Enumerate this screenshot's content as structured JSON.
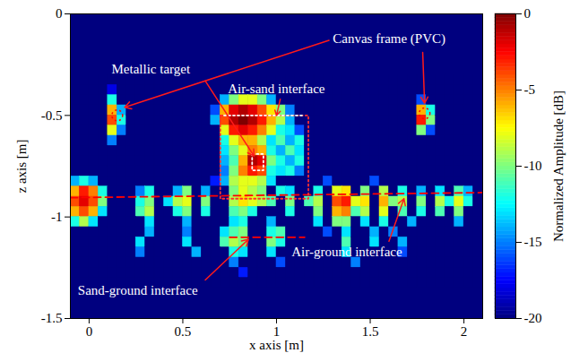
{
  "chart_data": {
    "type": "heatmap",
    "xlabel": "x axis [m]",
    "ylabel": "z axis [m]",
    "xlim": [
      -0.1,
      2.1
    ],
    "ylim": [
      -1.5,
      0
    ],
    "xticks": [
      0,
      0.5,
      1,
      1.5,
      2
    ],
    "yticks": [
      -1.5,
      -1,
      -0.5,
      0
    ],
    "colorbar": {
      "label": "Normalized Amplitude [dB]",
      "range": [
        -20,
        0
      ],
      "ticks": [
        -20,
        -15,
        -10,
        -5,
        0
      ]
    },
    "heatmap": {
      "x": [
        -0.075,
        -0.025,
        0.025,
        0.075,
        0.125,
        0.175,
        0.225,
        0.275,
        0.325,
        0.375,
        0.425,
        0.475,
        0.525,
        0.575,
        0.625,
        0.675,
        0.725,
        0.775,
        0.825,
        0.875,
        0.925,
        0.975,
        1.025,
        1.075,
        1.125,
        1.175,
        1.225,
        1.275,
        1.325,
        1.375,
        1.425,
        1.475,
        1.525,
        1.575,
        1.625,
        1.675,
        1.725,
        1.775,
        1.825,
        1.875,
        1.925,
        1.975,
        2.025,
        2.075
      ],
      "z": [
        -0.325,
        -0.375,
        -0.425,
        -0.475,
        -0.525,
        -0.575,
        -0.625,
        -0.675,
        -0.725,
        -0.775,
        -0.825,
        -0.875,
        -0.925,
        -0.975,
        -1.025,
        -1.075,
        -1.125,
        -1.175,
        -1.225,
        -1.275,
        -1.325
      ],
      "values": [
        [
          -20,
          -20,
          -20,
          -20,
          -20,
          -20,
          -20,
          -20,
          -20,
          -20,
          -20,
          -20,
          -20,
          -20,
          -20,
          -20,
          -20,
          -20,
          -20,
          -20,
          -20,
          -20,
          -20,
          -20,
          -20,
          -20,
          -20,
          -20,
          -20,
          -20,
          -20,
          -20,
          -20,
          -20,
          -20,
          -20,
          -20,
          -20,
          -20,
          -20,
          -20,
          -20,
          -20,
          -20
        ],
        [
          -20,
          -20,
          -20,
          -20,
          -18,
          -20,
          -20,
          -20,
          -20,
          -20,
          -20,
          -20,
          -20,
          -20,
          -20,
          -20,
          -20,
          -20,
          -20,
          -20,
          -20,
          -20,
          -20,
          -20,
          -20,
          -20,
          -20,
          -20,
          -20,
          -20,
          -20,
          -20,
          -20,
          -20,
          -20,
          -20,
          -20,
          -20,
          -20,
          -20,
          -20,
          -20,
          -20,
          -20
        ],
        [
          -20,
          -20,
          -20,
          -20,
          -12,
          -20,
          -20,
          -20,
          -20,
          -20,
          -20,
          -20,
          -20,
          -20,
          -20,
          -20,
          -14,
          -10,
          -8,
          -8,
          -10,
          -14,
          -20,
          -20,
          -20,
          -20,
          -20,
          -20,
          -20,
          -20,
          -20,
          -20,
          -20,
          -20,
          -20,
          -20,
          -20,
          -16,
          -20,
          -20,
          -20,
          -20,
          -20,
          -20
        ],
        [
          -20,
          -20,
          -20,
          -20,
          -6,
          -14,
          -20,
          -20,
          -20,
          -20,
          -20,
          -20,
          -20,
          -20,
          -20,
          -16,
          -6,
          -2,
          -1,
          -2,
          -4,
          -7,
          -10,
          -15,
          -20,
          -20,
          -20,
          -20,
          -20,
          -20,
          -20,
          -20,
          -20,
          -20,
          -20,
          -20,
          -20,
          -6,
          -12,
          -20,
          -20,
          -20,
          -20,
          -20
        ],
        [
          -20,
          -20,
          -20,
          -20,
          -4,
          -12,
          -20,
          -20,
          -20,
          -20,
          -20,
          -20,
          -20,
          -20,
          -20,
          -14,
          -4,
          -1,
          0,
          -1,
          -3,
          -6,
          -9,
          -14,
          -20,
          -20,
          -20,
          -20,
          -20,
          -20,
          -20,
          -20,
          -20,
          -20,
          -20,
          -20,
          -20,
          -3,
          -10,
          -20,
          -20,
          -20,
          -20,
          -20
        ],
        [
          -20,
          -20,
          -20,
          -20,
          -8,
          -15,
          -20,
          -20,
          -20,
          -20,
          -20,
          -20,
          -20,
          -20,
          -20,
          -20,
          -8,
          -3,
          -2,
          -3,
          -5,
          -8,
          -12,
          -13,
          -16,
          -20,
          -20,
          -20,
          -20,
          -20,
          -20,
          -20,
          -20,
          -20,
          -20,
          -20,
          -20,
          -10,
          -16,
          -20,
          -20,
          -20,
          -20,
          -20
        ],
        [
          -20,
          -20,
          -20,
          -20,
          -15,
          -20,
          -20,
          -20,
          -20,
          -20,
          -20,
          -20,
          -20,
          -20,
          -20,
          -20,
          -12,
          -8,
          -6,
          -6,
          -9,
          -13,
          -11,
          -14,
          -12,
          -20,
          -20,
          -20,
          -20,
          -20,
          -20,
          -20,
          -20,
          -20,
          -20,
          -20,
          -20,
          -20,
          -20,
          -20,
          -20,
          -20,
          -20,
          -20
        ],
        [
          -20,
          -20,
          -20,
          -20,
          -20,
          -20,
          -20,
          -20,
          -20,
          -20,
          -20,
          -20,
          -20,
          -20,
          -20,
          -20,
          -13,
          -10,
          -8,
          -5,
          -6,
          -12,
          -14,
          -11,
          -13,
          -20,
          -20,
          -20,
          -20,
          -20,
          -20,
          -20,
          -20,
          -20,
          -20,
          -20,
          -20,
          -20,
          -20,
          -20,
          -20,
          -20,
          -20,
          -20
        ],
        [
          -20,
          -20,
          -20,
          -20,
          -20,
          -20,
          -20,
          -20,
          -20,
          -20,
          -20,
          -20,
          -20,
          -20,
          -20,
          -20,
          -14,
          -11,
          -6,
          -1,
          -2,
          -10,
          -12,
          -14,
          -12,
          -20,
          -20,
          -20,
          -20,
          -20,
          -20,
          -20,
          -20,
          -20,
          -20,
          -20,
          -20,
          -20,
          -20,
          -20,
          -20,
          -20,
          -20,
          -20
        ],
        [
          -20,
          -20,
          -20,
          -20,
          -20,
          -20,
          -20,
          -20,
          -20,
          -20,
          -20,
          -20,
          -20,
          -20,
          -20,
          -20,
          -15,
          -10,
          -5,
          -3,
          -4,
          -12,
          -13,
          -12,
          -15,
          -20,
          -20,
          -20,
          -20,
          -20,
          -20,
          -20,
          -20,
          -20,
          -20,
          -20,
          -20,
          -20,
          -20,
          -20,
          -20,
          -20,
          -20,
          -20
        ],
        [
          -14,
          -12,
          -14,
          -20,
          -20,
          -20,
          -20,
          -20,
          -20,
          -20,
          -20,
          -20,
          -20,
          -20,
          -20,
          -17,
          -14,
          -9,
          -8,
          -8,
          -9,
          -13,
          -20,
          -20,
          -20,
          -20,
          -20,
          -16,
          -20,
          -20,
          -20,
          -20,
          -16,
          -20,
          -20,
          -20,
          -20,
          -20,
          -20,
          -20,
          -20,
          -20,
          -20,
          -20
        ],
        [
          -6,
          -3,
          -5,
          -12,
          -20,
          -20,
          -20,
          -15,
          -12,
          -20,
          -20,
          -14,
          -10,
          -20,
          -14,
          -20,
          -20,
          -10,
          -8,
          -9,
          -10,
          -20,
          -12,
          -13,
          -20,
          -20,
          -12,
          -20,
          -8,
          -7,
          -20,
          -10,
          -20,
          -9,
          -20,
          -12,
          -20,
          -14,
          -20,
          -13,
          -20,
          -11,
          -14,
          -20
        ],
        [
          -4,
          -2,
          -4,
          -10,
          -20,
          -20,
          -20,
          -12,
          -10,
          -20,
          -13,
          -9,
          -8,
          -20,
          -10,
          -20,
          -20,
          -9,
          -7,
          -8,
          -9,
          -11,
          -20,
          -10,
          -20,
          -11,
          -9,
          -20,
          -4,
          -3,
          -8,
          -7,
          -20,
          -6,
          -10,
          -9,
          -20,
          -10,
          -20,
          -9,
          -12,
          -8,
          -12,
          -20
        ],
        [
          -6,
          -4,
          -6,
          -13,
          -20,
          -20,
          -20,
          -11,
          -9,
          -20,
          -20,
          -12,
          -10,
          -20,
          -12,
          -20,
          -20,
          -11,
          -10,
          -12,
          -20,
          -20,
          -20,
          -12,
          -20,
          -20,
          -10,
          -20,
          -6,
          -5,
          -11,
          -9,
          -20,
          -8,
          -20,
          -11,
          -20,
          -12,
          -20,
          -11,
          -20,
          -10,
          -20,
          -20
        ],
        [
          -12,
          -9,
          -13,
          -20,
          -20,
          -20,
          -20,
          -20,
          -13,
          -20,
          -20,
          -20,
          -14,
          -20,
          -20,
          -20,
          -20,
          -13,
          -12,
          -20,
          -20,
          -14,
          -20,
          -20,
          -20,
          -20,
          -13,
          -20,
          -10,
          -10,
          -20,
          -13,
          -20,
          -12,
          -20,
          -20,
          -14,
          -20,
          -20,
          -20,
          -20,
          -14,
          -20,
          -20
        ],
        [
          -20,
          -20,
          -20,
          -20,
          -20,
          -20,
          -20,
          -20,
          -14,
          -20,
          -20,
          -20,
          -15,
          -20,
          -20,
          -20,
          -13,
          -11,
          -10,
          -20,
          -20,
          -12,
          -11,
          -20,
          -20,
          -20,
          -20,
          -16,
          -20,
          -13,
          -20,
          -20,
          -14,
          -20,
          -15,
          -20,
          -20,
          -20,
          -20,
          -20,
          -20,
          -20,
          -20,
          -20
        ],
        [
          -20,
          -20,
          -20,
          -20,
          -20,
          -20,
          -20,
          -13,
          -20,
          -20,
          -20,
          -20,
          -13,
          -20,
          -20,
          -20,
          -11,
          -9,
          -10,
          -20,
          -20,
          -10,
          -12,
          -20,
          -20,
          -20,
          -20,
          -20,
          -20,
          -11,
          -20,
          -20,
          -13,
          -20,
          -20,
          -14,
          -20,
          -20,
          -20,
          -20,
          -20,
          -20,
          -20,
          -20
        ],
        [
          -20,
          -20,
          -20,
          -20,
          -20,
          -20,
          -20,
          -15,
          -20,
          -20,
          -20,
          -20,
          -20,
          -14,
          -20,
          -20,
          -20,
          -12,
          -13,
          -20,
          -20,
          -13,
          -20,
          -20,
          -20,
          -20,
          -20,
          -20,
          -20,
          -13,
          -20,
          -20,
          -20,
          -20,
          -20,
          -16,
          -20,
          -20,
          -20,
          -20,
          -20,
          -20,
          -20,
          -20
        ],
        [
          -20,
          -20,
          -20,
          -20,
          -20,
          -20,
          -20,
          -20,
          -20,
          -20,
          -20,
          -20,
          -20,
          -20,
          -20,
          -20,
          -20,
          -15,
          -20,
          -20,
          -20,
          -20,
          -16,
          -20,
          -20,
          -20,
          -20,
          -20,
          -20,
          -20,
          -15,
          -20,
          -20,
          -20,
          -20,
          -20,
          -20,
          -20,
          -20,
          -20,
          -20,
          -20,
          -20,
          -20
        ],
        [
          -20,
          -20,
          -20,
          -20,
          -20,
          -20,
          -20,
          -20,
          -20,
          -20,
          -20,
          -20,
          -20,
          -20,
          -20,
          -20,
          -20,
          -20,
          -17,
          -20,
          -20,
          -20,
          -20,
          -20,
          -20,
          -20,
          -20,
          -20,
          -20,
          -20,
          -20,
          -20,
          -20,
          -20,
          -20,
          -20,
          -20,
          -20,
          -20,
          -20,
          -20,
          -20,
          -20,
          -20
        ],
        [
          -20,
          -20,
          -20,
          -20,
          -20,
          -20,
          -20,
          -20,
          -20,
          -20,
          -20,
          -20,
          -20,
          -20,
          -20,
          -20,
          -20,
          -20,
          -20,
          -20,
          -20,
          -20,
          -20,
          -20,
          -20,
          -20,
          -20,
          -20,
          -20,
          -20,
          -20,
          -20,
          -20,
          -20,
          -20,
          -20,
          -20,
          -20,
          -20,
          -20,
          -20,
          -20,
          -20,
          -20
        ]
      ]
    },
    "lines": [
      {
        "x": [
          -0.1,
          2.1
        ],
        "z": [
          -0.905,
          -0.88
        ],
        "color": "#ff0000",
        "line_style": "dashed"
      },
      {
        "x": [
          0.75,
          1.15
        ],
        "z": [
          -1.1,
          -1.1
        ],
        "color": "#ff0000",
        "line_style": "dashed"
      },
      {
        "x": [
          0.7,
          1.17,
          1.17,
          0.7,
          0.7
        ],
        "z": [
          -0.5,
          -0.5,
          -0.91,
          -0.91,
          -0.5
        ],
        "color": "#ff3030",
        "line_style": "dotted"
      },
      {
        "x": [
          0.72,
          1.15
        ],
        "z": [
          -0.5,
          -0.5
        ],
        "color": "#ffffff",
        "line_style": "dotted"
      },
      {
        "x": [
          0.87,
          0.93,
          0.93,
          0.87,
          0.87
        ],
        "z": [
          -0.69,
          -0.69,
          -0.77,
          -0.77,
          -0.69
        ],
        "color": "#ffffff",
        "line_style": "dotted"
      }
    ],
    "markers": [
      {
        "x": 0.15,
        "z": -0.5,
        "color": "#ff0000",
        "line_style": "dotted",
        "marker": "circle"
      },
      {
        "x": 1.79,
        "z": -0.49,
        "color": "#ff0000",
        "line_style": "dotted",
        "marker": "circle"
      }
    ],
    "annotations": [
      {
        "text": "Canvas frame (PVC)",
        "x": 1.3,
        "z": -0.12,
        "arrows": [
          {
            "from": [
              1.28,
              -0.13
            ],
            "to": [
              0.19,
              -0.46
            ]
          },
          {
            "from": [
              1.78,
              -0.19
            ],
            "to": [
              1.79,
              -0.44
            ]
          }
        ]
      },
      {
        "text": "Metallic target",
        "x": 0.12,
        "z": -0.27,
        "arrows": [
          {
            "from": [
              0.62,
              -0.33
            ],
            "to": [
              0.88,
              -0.7
            ]
          }
        ]
      },
      {
        "text": "Air-sand interface",
        "x": 0.74,
        "z": -0.37,
        "arrows": [
          {
            "from": [
              1.02,
              -0.42
            ],
            "to": [
              1.0,
              -0.5
            ]
          }
        ]
      },
      {
        "text": "Air-ground interface",
        "x": 1.08,
        "z": -1.17,
        "arrows": [
          {
            "from": [
              1.6,
              -1.12
            ],
            "to": [
              1.68,
              -0.91
            ]
          }
        ]
      },
      {
        "text": "Sand-ground interface",
        "x": -0.06,
        "z": -1.36,
        "arrows": [
          {
            "from": [
              0.62,
              -1.31
            ],
            "to": [
              0.85,
              -1.11
            ]
          }
        ]
      }
    ]
  }
}
